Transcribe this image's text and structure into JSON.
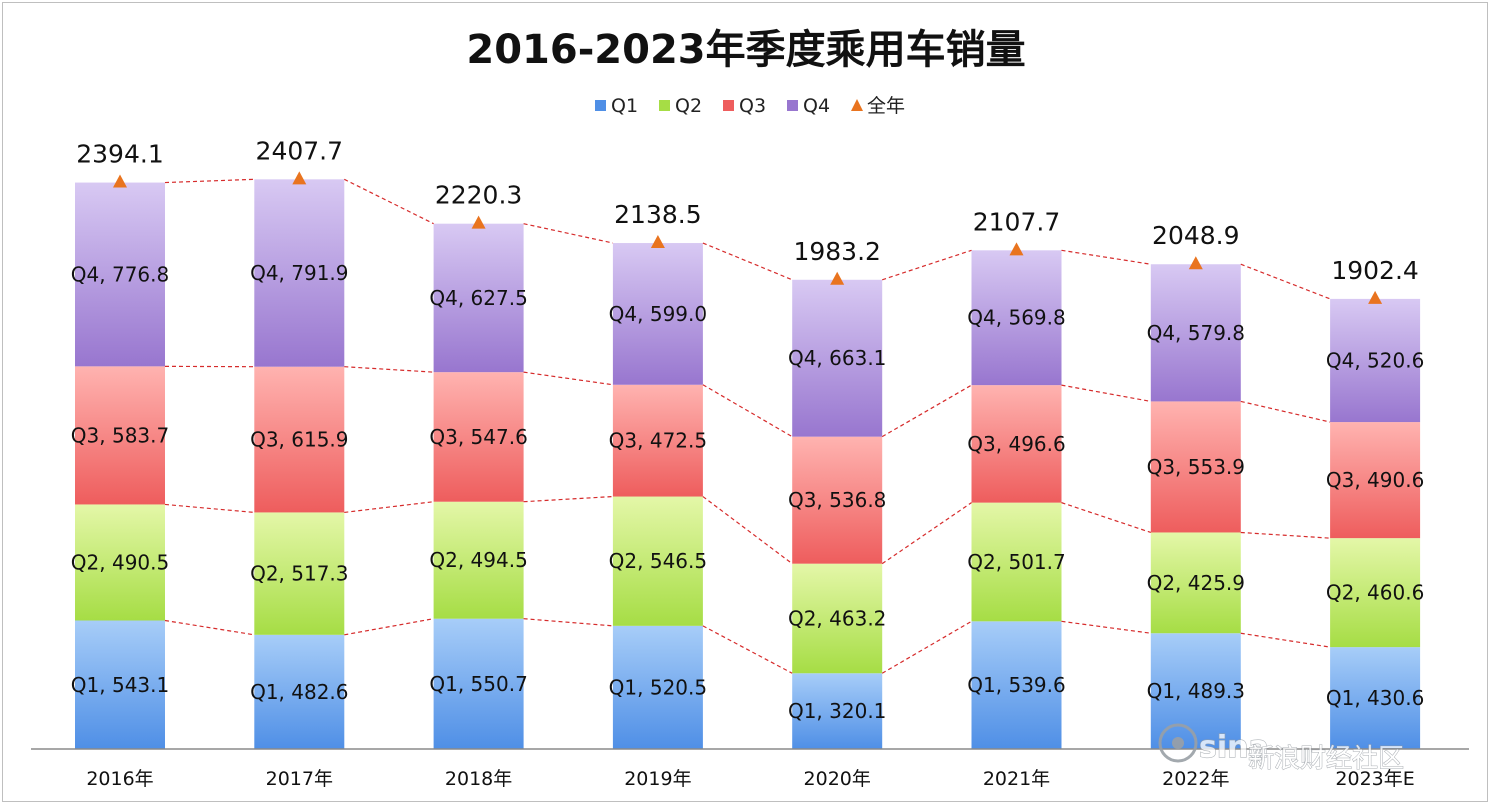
{
  "chart_data": {
    "type": "bar",
    "stacked": true,
    "title": "2016-2023年季度乘用车销量",
    "categories": [
      "2016年",
      "2017年",
      "2018年",
      "2019年",
      "2020年",
      "2021年",
      "2022年",
      "2023年E"
    ],
    "series": [
      {
        "name": "Q1",
        "values": [
          543.1,
          482.6,
          550.7,
          520.5,
          320.1,
          539.6,
          489.3,
          430.6
        ],
        "color": "#4f8fe6"
      },
      {
        "name": "Q2",
        "values": [
          490.5,
          517.3,
          494.5,
          546.5,
          463.2,
          501.7,
          425.9,
          460.6
        ],
        "color": "#a6dd45"
      },
      {
        "name": "Q3",
        "values": [
          583.7,
          615.9,
          547.6,
          472.5,
          536.8,
          496.6,
          553.9,
          490.6
        ],
        "color": "#ee5d5d"
      },
      {
        "name": "Q4",
        "values": [
          776.8,
          791.9,
          627.5,
          599.0,
          663.1,
          569.8,
          579.8,
          520.6
        ],
        "color": "#9876cf"
      }
    ],
    "totals": {
      "name": "全年",
      "values": [
        2394.1,
        2407.7,
        2220.3,
        2138.5,
        1983.2,
        2107.7,
        2048.9,
        1902.4
      ],
      "color": "#e9741f"
    },
    "label_format": "series, value",
    "series_connector_lines": "dashed red",
    "legend_position": "top-center",
    "grid": false,
    "ylim": [
      0,
      2550
    ]
  },
  "watermark": {
    "brand": "sina",
    "text": "新浪财经社区"
  }
}
